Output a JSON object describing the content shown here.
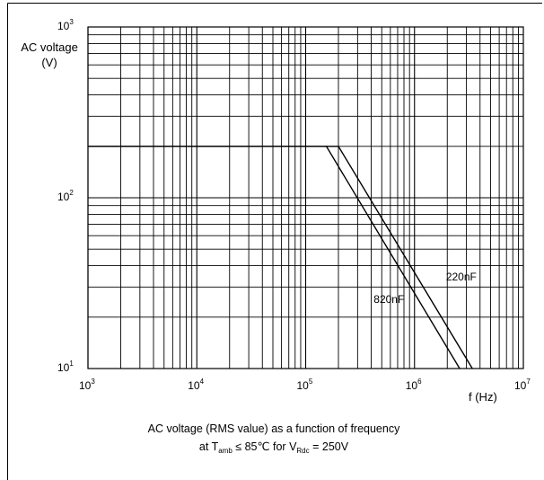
{
  "chart_data": {
    "type": "line",
    "title": "",
    "ylabel_line1": "AC voltage",
    "ylabel_line2": "(V)",
    "xlabel": "f (Hz)",
    "x_scale": "log",
    "y_scale": "log",
    "xlim": [
      1000,
      10000000
    ],
    "ylim": [
      10,
      1000
    ],
    "grid": true,
    "x_ticks": [
      {
        "base": "10",
        "exp": "3",
        "value": 1000
      },
      {
        "base": "10",
        "exp": "4",
        "value": 10000
      },
      {
        "base": "10",
        "exp": "5",
        "value": 100000
      },
      {
        "base": "10",
        "exp": "6",
        "value": 1000000
      },
      {
        "base": "10",
        "exp": "7",
        "value": 10000000
      }
    ],
    "y_ticks": [
      {
        "base": "10",
        "exp": "1",
        "value": 10
      },
      {
        "base": "10",
        "exp": "2",
        "value": 100
      },
      {
        "base": "10",
        "exp": "3",
        "value": 1000
      }
    ],
    "series": [
      {
        "name": "220nF",
        "x": [
          1000,
          200000,
          3400000
        ],
        "y": [
          200,
          200,
          10
        ]
      },
      {
        "name": "820nF",
        "x": [
          1000,
          155000,
          2600000
        ],
        "y": [
          200,
          200,
          10
        ]
      }
    ],
    "caption": {
      "line1": "AC voltage (RMS value) as a function of frequency",
      "l2_a": "at T",
      "l2_amb": "amb",
      "l2_b": " ≤  85℃  for V",
      "l2_rdc": "Rdc",
      "l2_c": " = 250V"
    }
  }
}
